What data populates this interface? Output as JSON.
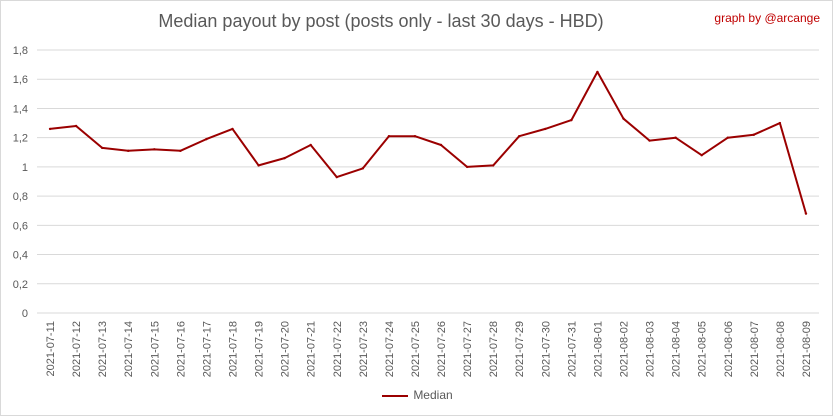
{
  "credit": "graph by @arcange",
  "colors": {
    "line": "#9b0000",
    "grid": "#d9d9d9",
    "axis_text": "#595959",
    "credit": "#c00000"
  },
  "chart_data": {
    "type": "line",
    "title": "Median payout by post (posts only - last 30 days - HBD)",
    "xlabel": "",
    "ylabel": "",
    "ylim": [
      0,
      1.8
    ],
    "yticks": [
      "0",
      "0,2",
      "0,4",
      "0,6",
      "0,8",
      "1",
      "1,2",
      "1,4",
      "1,6",
      "1,8"
    ],
    "grid": true,
    "legend_position": "bottom",
    "categories": [
      "2021-07-11",
      "2021-07-12",
      "2021-07-13",
      "2021-07-14",
      "2021-07-15",
      "2021-07-16",
      "2021-07-17",
      "2021-07-18",
      "2021-07-19",
      "2021-07-20",
      "2021-07-21",
      "2021-07-22",
      "2021-07-23",
      "2021-07-24",
      "2021-07-25",
      "2021-07-26",
      "2021-07-27",
      "2021-07-28",
      "2021-07-29",
      "2021-07-30",
      "2021-07-31",
      "2021-08-01",
      "2021-08-02",
      "2021-08-03",
      "2021-08-04",
      "2021-08-05",
      "2021-08-06",
      "2021-08-07",
      "2021-08-08",
      "2021-08-09"
    ],
    "series": [
      {
        "name": "Median",
        "values": [
          1.26,
          1.28,
          1.13,
          1.11,
          1.12,
          1.11,
          1.19,
          1.26,
          1.01,
          1.06,
          1.15,
          0.93,
          0.99,
          1.21,
          1.21,
          1.15,
          1.0,
          1.01,
          1.21,
          1.26,
          1.32,
          1.65,
          1.33,
          1.18,
          1.2,
          1.08,
          1.2,
          1.22,
          1.3,
          0.68
        ]
      }
    ]
  }
}
